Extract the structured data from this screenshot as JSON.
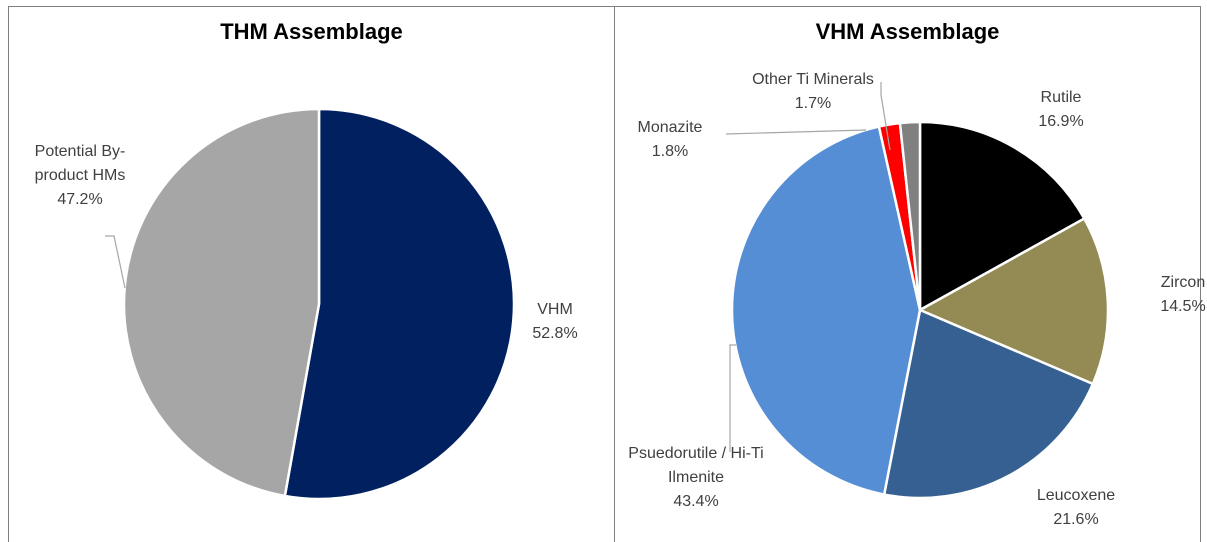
{
  "chart_data": [
    {
      "type": "pie",
      "title": "THM Assemblage",
      "categories": [
        "VHM",
        "Potential By-product HMs"
      ],
      "values": [
        52.8,
        47.2
      ],
      "value_labels": [
        "52.8%",
        "47.2%"
      ],
      "colors": [
        "#002060",
        "#a6a6a6"
      ]
    },
    {
      "type": "pie",
      "title": "VHM Assemblage",
      "categories": [
        "Rutile",
        "Zircon",
        "Leucoxene",
        "Psuedorutile / Hi-Ti Ilmenite",
        "Monazite",
        "Other Ti Minerals"
      ],
      "values": [
        16.9,
        14.5,
        21.6,
        43.4,
        1.8,
        1.7
      ],
      "value_labels": [
        "16.9%",
        "14.5%",
        "21.6%",
        "43.4%",
        "1.8%",
        "1.7%"
      ],
      "colors": [
        "#000000",
        "#948a54",
        "#376092",
        "#558ed5",
        "#ff0000",
        "#808080"
      ]
    }
  ]
}
